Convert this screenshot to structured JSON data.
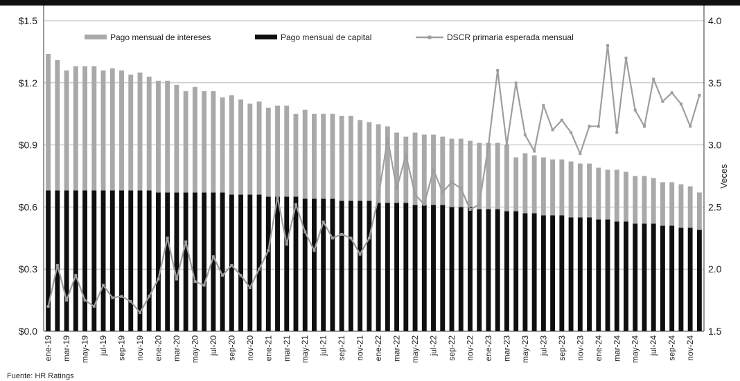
{
  "source": "Fuente: HR Ratings",
  "chart_data": {
    "type": "bar",
    "title": "",
    "xlabel": "",
    "ylabel": "",
    "y2label": "Veces",
    "ylim": [
      0,
      1.5
    ],
    "y2lim": [
      1.5,
      4.0
    ],
    "yticks": [
      "$0.0",
      "$0.3",
      "$0.6",
      "$0.9",
      "$1.2",
      "$1.5"
    ],
    "y2ticks": [
      "1.5",
      "2.0",
      "2.5",
      "3.0",
      "3.5",
      "4.0"
    ],
    "xtick_labels": [
      "ene-19",
      "mar-19",
      "may-19",
      "jul-19",
      "sep-19",
      "nov-19",
      "ene-20",
      "mar-20",
      "may-20",
      "jul-20",
      "sep-20",
      "nov-20",
      "ene-21",
      "mar-21",
      "may-21",
      "jul-21",
      "sep-21",
      "nov-21",
      "ene-22",
      "mar-22",
      "may-22",
      "jul-22",
      "sep-22",
      "nov-22",
      "ene-23",
      "mar-23",
      "may-23",
      "jul-23",
      "sep-23",
      "nov-23",
      "ene-24",
      "mar-24",
      "may-24",
      "jul-24",
      "sep-24",
      "nov-24"
    ],
    "legend": [
      "Pago mensual de intereses",
      "Pago mensual de capital",
      "DSCR primaria esperada mensual"
    ],
    "legend_position": "top-left",
    "grid": "horizontal",
    "colors": {
      "intereses": "#a9a9a9",
      "capital": "#0f0f0f",
      "dscr": "#9e9e9e",
      "grid": "#b8b8b8"
    },
    "categories": [
      "ene-19",
      "feb-19",
      "mar-19",
      "abr-19",
      "may-19",
      "jun-19",
      "jul-19",
      "ago-19",
      "sep-19",
      "oct-19",
      "nov-19",
      "dic-19",
      "ene-20",
      "feb-20",
      "mar-20",
      "abr-20",
      "may-20",
      "jun-20",
      "jul-20",
      "ago-20",
      "sep-20",
      "oct-20",
      "nov-20",
      "dic-20",
      "ene-21",
      "feb-21",
      "mar-21",
      "abr-21",
      "may-21",
      "jun-21",
      "jul-21",
      "ago-21",
      "sep-21",
      "oct-21",
      "nov-21",
      "dic-21",
      "ene-22",
      "feb-22",
      "mar-22",
      "abr-22",
      "may-22",
      "jun-22",
      "jul-22",
      "ago-22",
      "sep-22",
      "oct-22",
      "nov-22",
      "dic-22",
      "ene-23",
      "feb-23",
      "mar-23",
      "abr-23",
      "may-23",
      "jun-23",
      "jul-23",
      "ago-23",
      "sep-23",
      "oct-23",
      "nov-23",
      "dic-23",
      "ene-24",
      "feb-24",
      "mar-24",
      "abr-24",
      "may-24",
      "jun-24",
      "jul-24",
      "ago-24",
      "sep-24",
      "oct-24",
      "nov-24",
      "dic-24"
    ],
    "series": [
      {
        "name": "Pago mensual de capital",
        "type": "bar",
        "values": [
          0.68,
          0.68,
          0.68,
          0.68,
          0.68,
          0.68,
          0.68,
          0.68,
          0.68,
          0.68,
          0.68,
          0.68,
          0.67,
          0.67,
          0.67,
          0.67,
          0.67,
          0.67,
          0.67,
          0.67,
          0.66,
          0.66,
          0.66,
          0.66,
          0.65,
          0.65,
          0.65,
          0.65,
          0.64,
          0.64,
          0.64,
          0.64,
          0.63,
          0.63,
          0.63,
          0.63,
          0.62,
          0.62,
          0.62,
          0.62,
          0.61,
          0.61,
          0.61,
          0.61,
          0.6,
          0.6,
          0.6,
          0.59,
          0.59,
          0.59,
          0.58,
          0.58,
          0.57,
          0.57,
          0.56,
          0.56,
          0.56,
          0.55,
          0.55,
          0.55,
          0.54,
          0.54,
          0.53,
          0.53,
          0.52,
          0.52,
          0.52,
          0.51,
          0.51,
          0.5,
          0.5,
          0.49
        ]
      },
      {
        "name": "Pago mensual de intereses",
        "type": "bar",
        "values": [
          0.66,
          0.63,
          0.58,
          0.6,
          0.6,
          0.6,
          0.58,
          0.59,
          0.58,
          0.56,
          0.57,
          0.55,
          0.54,
          0.54,
          0.52,
          0.49,
          0.51,
          0.49,
          0.49,
          0.46,
          0.48,
          0.46,
          0.44,
          0.45,
          0.43,
          0.44,
          0.44,
          0.4,
          0.43,
          0.41,
          0.41,
          0.41,
          0.41,
          0.41,
          0.39,
          0.38,
          0.38,
          0.37,
          0.34,
          0.32,
          0.35,
          0.34,
          0.34,
          0.33,
          0.33,
          0.33,
          0.32,
          0.32,
          0.32,
          0.32,
          0.32,
          0.26,
          0.29,
          0.28,
          0.28,
          0.27,
          0.27,
          0.27,
          0.26,
          0.26,
          0.25,
          0.24,
          0.25,
          0.24,
          0.23,
          0.23,
          0.22,
          0.21,
          0.21,
          0.21,
          0.2,
          0.18
        ]
      },
      {
        "name": "DSCR primaria esperada mensual",
        "type": "line",
        "axis": "right",
        "values": [
          1.7,
          2.03,
          1.75,
          1.95,
          1.75,
          1.7,
          1.87,
          1.77,
          1.78,
          1.74,
          1.65,
          1.78,
          1.92,
          2.25,
          1.92,
          2.22,
          1.9,
          1.87,
          2.1,
          1.95,
          2.03,
          1.95,
          1.85,
          2.0,
          2.15,
          2.58,
          2.2,
          2.52,
          2.3,
          2.15,
          2.38,
          2.25,
          2.28,
          2.25,
          2.12,
          2.25,
          2.58,
          3.05,
          2.65,
          2.92,
          2.6,
          2.52,
          2.8,
          2.62,
          2.7,
          2.65,
          2.48,
          2.52,
          3.0,
          3.6,
          3.0,
          3.5,
          3.08,
          2.95,
          3.32,
          3.12,
          3.2,
          3.1,
          2.93,
          3.15,
          3.15,
          3.8,
          3.1,
          3.7,
          3.28,
          3.15,
          3.53,
          3.35,
          3.42,
          3.33,
          3.15,
          3.4
        ]
      }
    ]
  }
}
